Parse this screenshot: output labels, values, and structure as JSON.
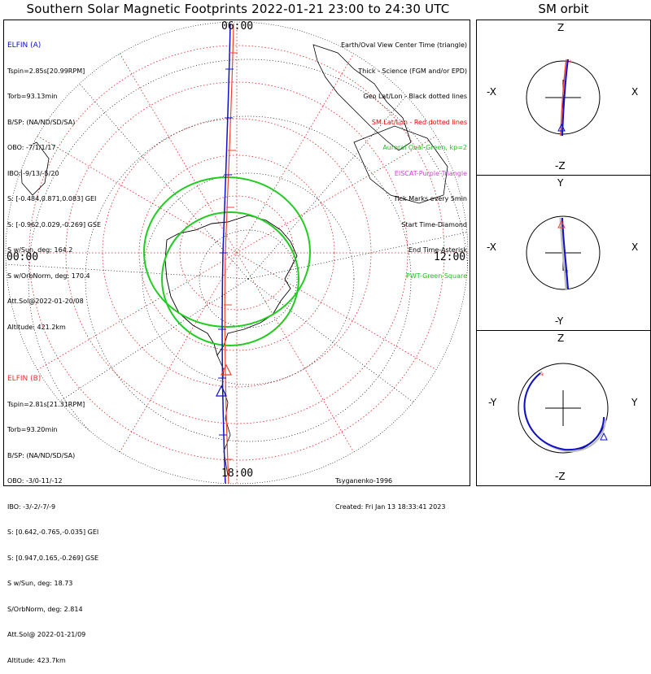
{
  "title": "Southern Solar Magnetic Footprints 2022-01-21 23:00 to 24:30 UTC",
  "sm_title": "SM orbit",
  "time_labels": {
    "top": "06:00",
    "left": "00:00",
    "right": "12:00",
    "bottom": "18:00"
  },
  "elfin_a": {
    "name": "ELFIN (A)",
    "color": "#1010cc",
    "lines": [
      "Tspin=2.85s[20.99RPM]",
      "Torb=93.13min",
      "B/SP: (NA/ND/SD/SA)",
      "OBO: -7/1/1/17",
      "IBO: -9/13/-5/20",
      "S: [-0.484,0.871,0.083] GEI",
      "S: [-0.962,0.029,-0.269] GSE",
      "S w/Sun, deg: 164.2",
      "S w/OrbNorm, deg: 170.4",
      "Att.Sol@2022-01-20/08",
      "Altitude: 421.2km"
    ]
  },
  "elfin_b": {
    "name": "ELFIN (B)",
    "color": "#ee3333",
    "lines": [
      "Tspin=2.81s[21.31RPM]",
      "Torb=93.20min",
      "B/SP: (NA/ND/SD/SA)",
      "OBO: -3/0-11/-12",
      "IBO: -3/-2/-7/-9",
      "S: [0.642,-0.765,-0.035] GEI",
      "S: [0.947,0.165,-0.269] GSE",
      "S w/Sun, deg: 18.73",
      "S/OrbNorm, deg: 2.814",
      "Att.Sol@ 2022-01-21/09",
      "Altitude: 423.7km"
    ]
  },
  "legend": [
    {
      "text": "Earth/Oval View Center Time (triangle)",
      "color": "#000000"
    },
    {
      "text": "Thick - Science (FGM and/or EPD)",
      "color": "#000000"
    },
    {
      "text": "Geo Lat/Lon - Black dotted lines",
      "color": "#000000"
    },
    {
      "text": "SM Lat/Lon - Red dotted lines",
      "color": "#ee0000"
    },
    {
      "text": "Auroral Oval-Green, kp=2",
      "color": "#22bb22"
    },
    {
      "text": "EISCAT-Purple Triangle",
      "color": "#cc44cc"
    },
    {
      "text": "Tick Marks every 5min",
      "color": "#000000"
    },
    {
      "text": "Start Time-Diamond",
      "color": "#000000"
    },
    {
      "text": "End Time-Asterisk",
      "color": "#000000"
    },
    {
      "text": "PWT-Green Square",
      "color": "#22bb22"
    }
  ],
  "footer": {
    "model": "Tsyganenko-1996",
    "created": "Created: Fri Jan 13 18:33:41 2023"
  },
  "panels": [
    {
      "top": "Z",
      "bottom": "-Z",
      "left": "-X",
      "right": "X"
    },
    {
      "top": "Y",
      "bottom": "-Y",
      "left": "-X",
      "right": "X"
    },
    {
      "top": "Z",
      "bottom": "-Z",
      "left": "-Y",
      "right": "Y"
    }
  ],
  "colors": {
    "geo_grid": "#000000",
    "sm_grid": "#dd2222",
    "oval": "#22cc22",
    "track_a": "#1010cc",
    "track_b": "#ee4433"
  }
}
